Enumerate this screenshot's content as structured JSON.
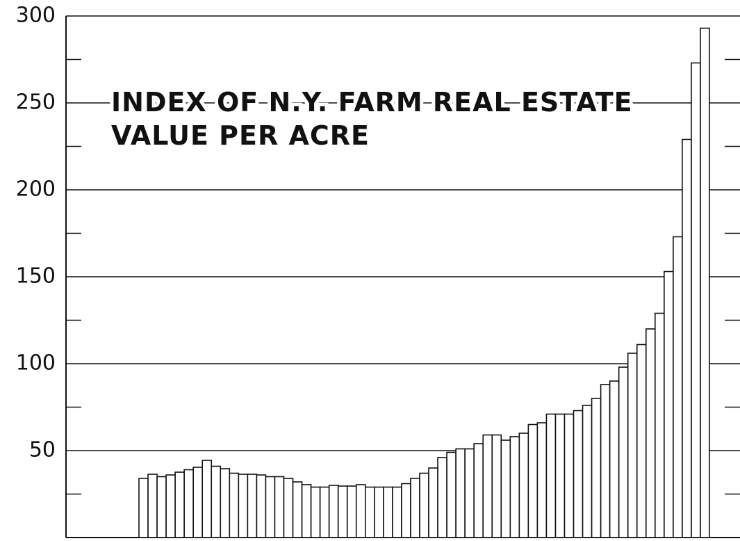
{
  "chart_data": {
    "type": "bar",
    "title": [
      "INDEX OF N.Y. FARM REAL ESTATE",
      "VALUE PER ACRE"
    ],
    "categories": [
      null,
      null,
      null,
      null,
      null,
      null,
      null,
      null,
      null,
      null,
      null,
      null,
      null,
      null,
      null,
      null,
      null,
      null,
      null,
      null,
      null,
      null,
      null,
      null,
      null,
      null,
      null,
      null,
      null,
      null,
      null,
      null,
      null,
      null,
      null,
      null,
      null,
      null,
      null,
      null,
      null,
      null,
      null,
      null,
      null,
      null,
      null,
      null,
      null,
      null,
      null,
      null,
      null,
      null,
      null,
      null,
      null,
      null,
      null,
      null,
      null,
      null,
      null
    ],
    "values": [
      34,
      36.4,
      35,
      36,
      37.6,
      39,
      40.4,
      44.4,
      41,
      39.6,
      37,
      36.4,
      36.4,
      36,
      35,
      35,
      34,
      32,
      30.4,
      29,
      29,
      30,
      29.6,
      29.6,
      30.4,
      29,
      29,
      29,
      29,
      31,
      34,
      37,
      40,
      46,
      49,
      51,
      51,
      54,
      59,
      59,
      56,
      58,
      60,
      65,
      66,
      71,
      71,
      71,
      73,
      76,
      80,
      88,
      90,
      98,
      106,
      111,
      120,
      129,
      153,
      173,
      229,
      273,
      293
    ],
    "color": "#ffffff",
    "ylim": [
      0,
      300
    ],
    "yticks": [
      50,
      100,
      150,
      200,
      250,
      300
    ],
    "minor_yticks": [
      25,
      75,
      125,
      175,
      225,
      275
    ],
    "grid": true
  }
}
